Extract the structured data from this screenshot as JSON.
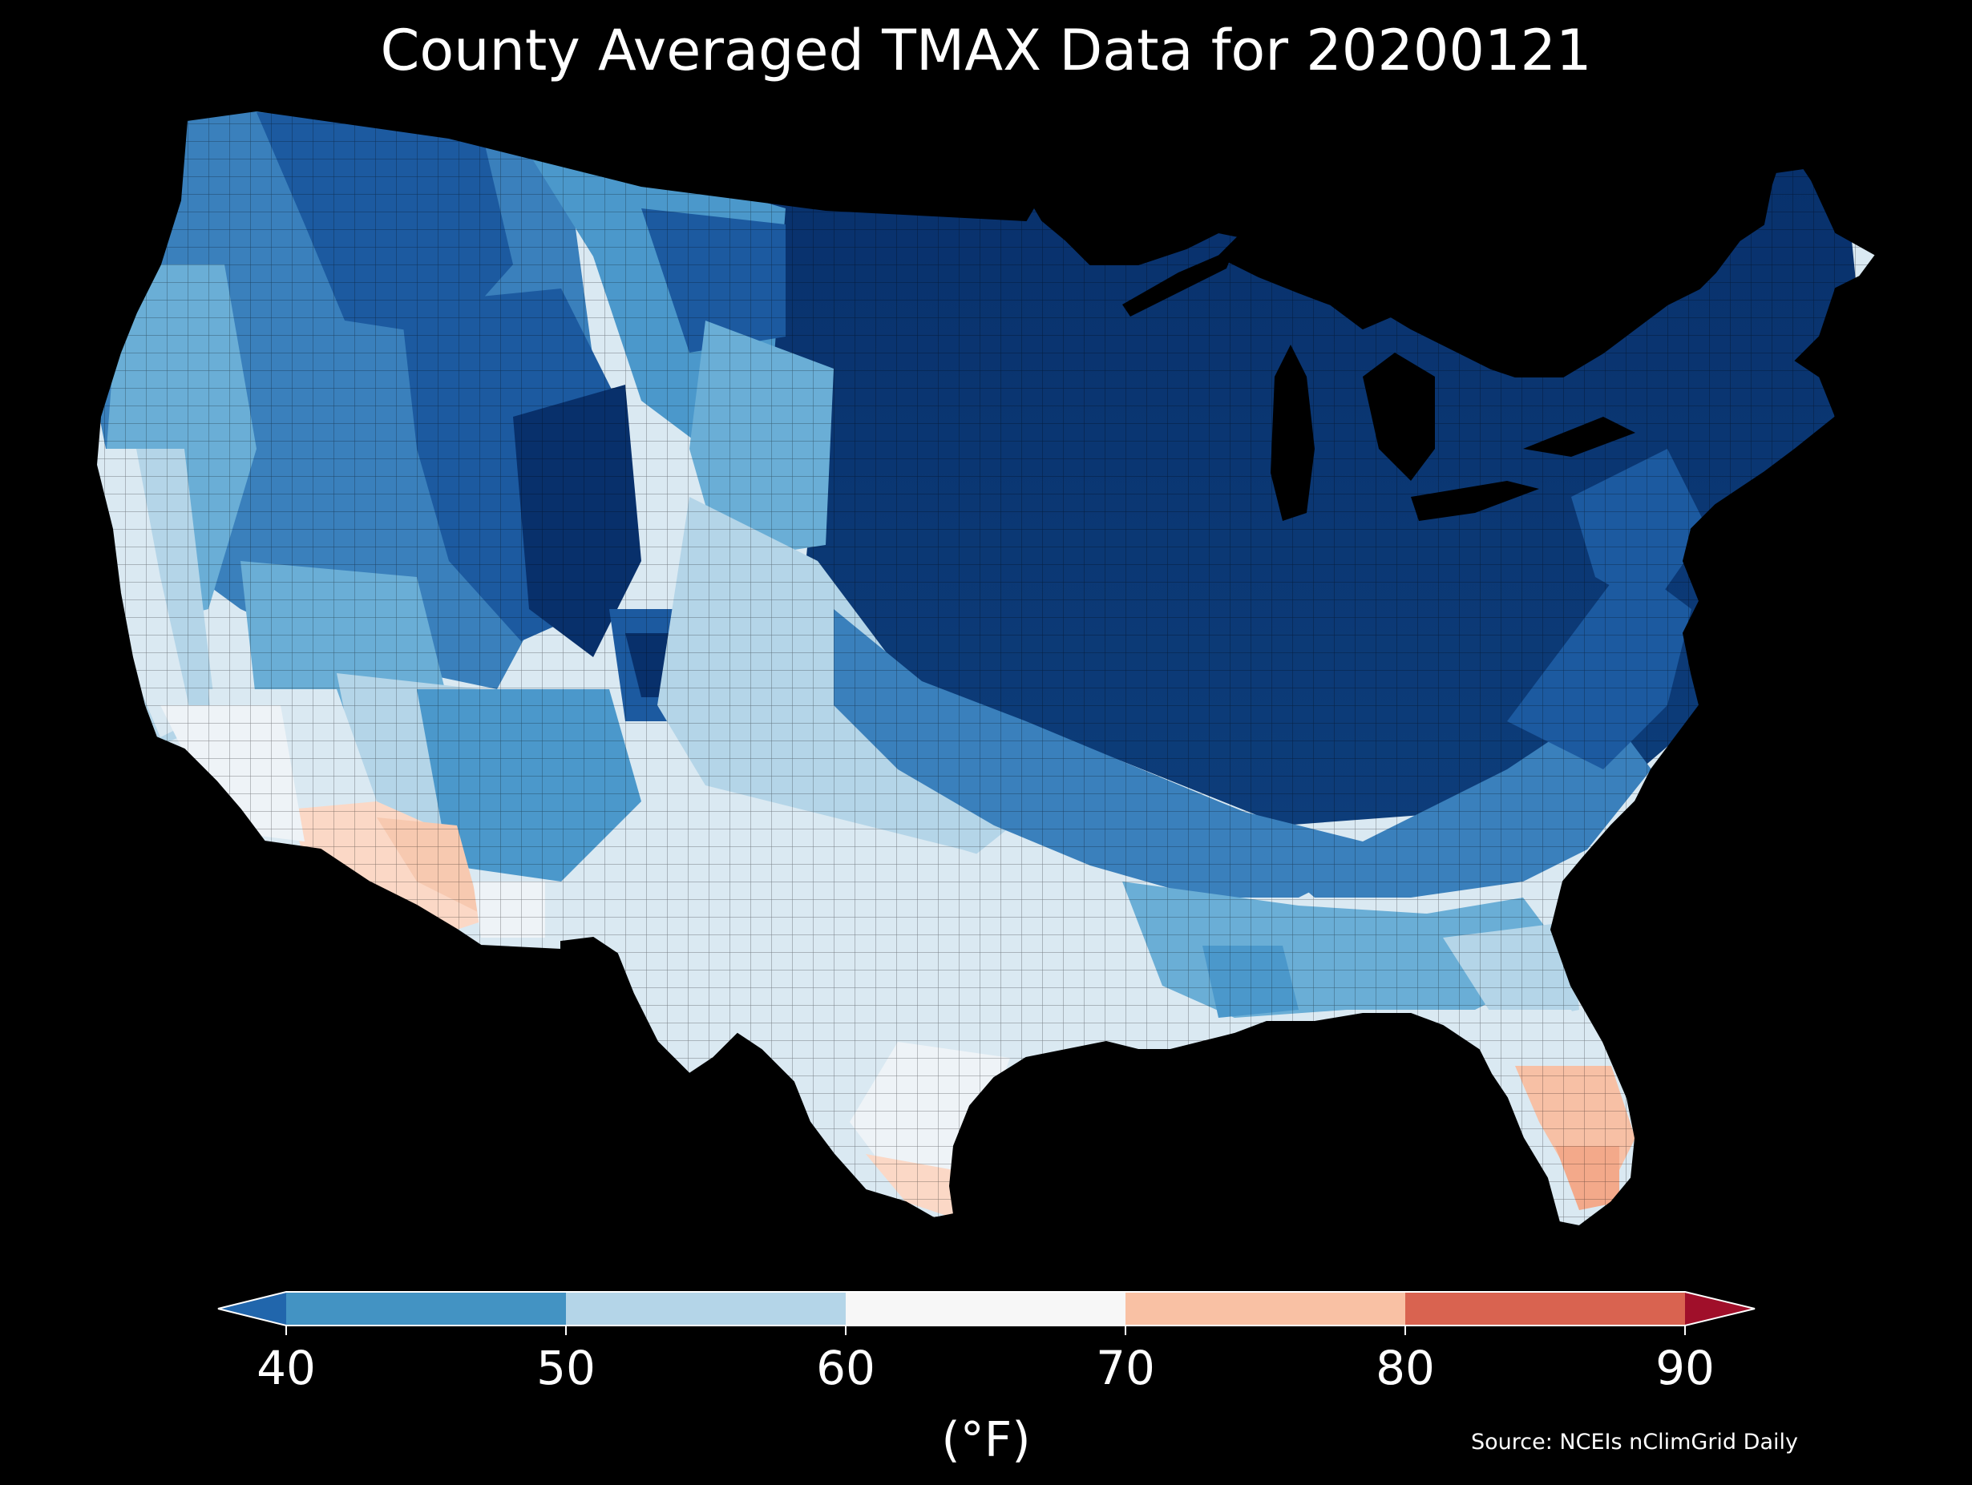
{
  "title": "County Averaged TMAX Data for 20200121",
  "source": "Source: NCEIs nClimGrid Daily",
  "colorbar": {
    "units_label": "(°F)",
    "ticks": [
      "40",
      "50",
      "60",
      "70",
      "80",
      "90"
    ],
    "bins": [
      {
        "range": "<40",
        "color": "#2166ac"
      },
      {
        "range": "40-50",
        "color": "#4393c3"
      },
      {
        "range": "50-60",
        "color": "#b4d5e8"
      },
      {
        "range": "60-70",
        "color": "#f7f7f7"
      },
      {
        "range": "70-80",
        "color": "#f9c1a4"
      },
      {
        "range": "80-90",
        "color": "#d96350"
      },
      {
        "range": ">90",
        "color": "#a00f2a"
      }
    ],
    "extend": "both"
  },
  "map": {
    "projection": "conic",
    "region": "contiguous United States counties",
    "background": "#000000",
    "palette": {
      "deep": "#08306b",
      "dark": "#1c5aa0",
      "mid": "#3a80bc",
      "light": "#6aaed6",
      "pale": "#b4d5e8",
      "paler": "#dae9f2",
      "near_white": "#eef3f7",
      "warm": "#fbd8c6",
      "warmer": "#f7c0a5"
    }
  }
}
